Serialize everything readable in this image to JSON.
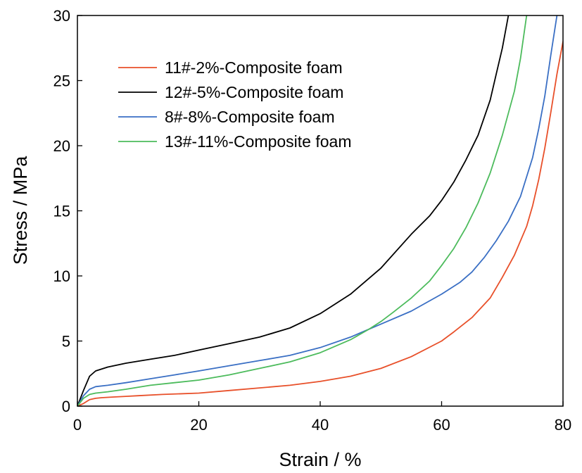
{
  "chart_data": {
    "type": "line",
    "title": "",
    "xlabel": "Strain / %",
    "ylabel": "Stress / MPa",
    "xlim": [
      0,
      80
    ],
    "ylim": [
      0,
      30
    ],
    "x_ticks": [
      0,
      20,
      40,
      60,
      80
    ],
    "y_ticks": [
      0,
      5,
      10,
      15,
      20,
      25,
      30
    ],
    "grid": false,
    "legend_position": "top-left",
    "series": [
      {
        "name": "11#-2%-Composite foam",
        "color": "#e8502a",
        "x": [
          0,
          1,
          2,
          3,
          4,
          6,
          8,
          10,
          14,
          20,
          25,
          30,
          35,
          40,
          45,
          50,
          55,
          60,
          62,
          65,
          68,
          70,
          72,
          74,
          75,
          76,
          77,
          78,
          79,
          80
        ],
        "y": [
          0,
          0.2,
          0.5,
          0.6,
          0.65,
          0.7,
          0.75,
          0.8,
          0.9,
          1.0,
          1.2,
          1.4,
          1.6,
          1.9,
          2.3,
          2.9,
          3.8,
          5.0,
          5.7,
          6.8,
          8.3,
          9.9,
          11.6,
          13.8,
          15.4,
          17.4,
          19.8,
          22.6,
          25.5,
          28.0
        ]
      },
      {
        "name": "12#-5%-Composite foam",
        "color": "#000000",
        "x": [
          0,
          1,
          2,
          3,
          5,
          8,
          12,
          16,
          20,
          25,
          30,
          35,
          40,
          45,
          50,
          55,
          58,
          60,
          62,
          64,
          66,
          68,
          69,
          70,
          71
        ],
        "y": [
          0,
          1.2,
          2.3,
          2.7,
          3.0,
          3.3,
          3.6,
          3.9,
          4.3,
          4.8,
          5.3,
          6.0,
          7.1,
          8.6,
          10.6,
          13.2,
          14.6,
          15.8,
          17.2,
          18.9,
          20.8,
          23.5,
          25.5,
          27.5,
          30.0
        ]
      },
      {
        "name": "8#-8%-Composite foam",
        "color": "#3a6fc4",
        "x": [
          0,
          1,
          2,
          3,
          5,
          8,
          12,
          16,
          20,
          25,
          30,
          35,
          40,
          45,
          50,
          55,
          60,
          63,
          65,
          67,
          69,
          71,
          73,
          75,
          76,
          77,
          78,
          79
        ],
        "y": [
          0,
          0.8,
          1.3,
          1.5,
          1.6,
          1.8,
          2.1,
          2.4,
          2.7,
          3.1,
          3.5,
          3.9,
          4.5,
          5.3,
          6.3,
          7.3,
          8.6,
          9.5,
          10.3,
          11.4,
          12.7,
          14.2,
          16.1,
          19.1,
          21.3,
          23.8,
          27.0,
          30.0
        ]
      },
      {
        "name": "13#-11%-Composite foam",
        "color": "#4cbb5c",
        "x": [
          0,
          1,
          2,
          3,
          5,
          8,
          12,
          16,
          20,
          25,
          30,
          35,
          40,
          45,
          48,
          50,
          52,
          55,
          58,
          60,
          62,
          64,
          66,
          68,
          70,
          72,
          73,
          74
        ],
        "y": [
          0,
          0.6,
          0.9,
          1.0,
          1.1,
          1.3,
          1.6,
          1.8,
          2.0,
          2.4,
          2.9,
          3.4,
          4.1,
          5.1,
          5.9,
          6.5,
          7.2,
          8.3,
          9.6,
          10.8,
          12.1,
          13.7,
          15.6,
          17.9,
          20.8,
          24.2,
          26.7,
          30.0
        ]
      }
    ]
  }
}
